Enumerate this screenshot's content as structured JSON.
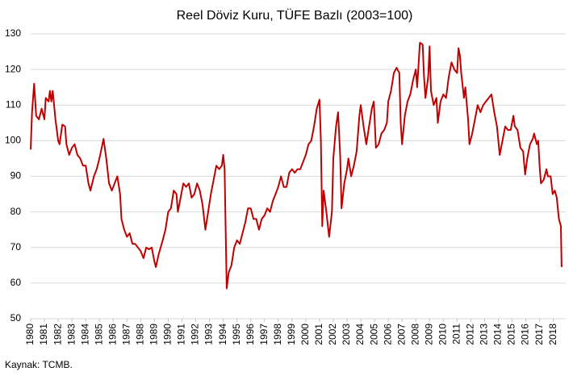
{
  "chart_data": {
    "type": "line",
    "title": "Reel Döviz Kuru, TÜFE Bazlı (2003=100)",
    "source": "Kaynak: TCMB.",
    "x": [
      1980.0,
      1980.1,
      1980.25,
      1980.4,
      1980.6,
      1980.8,
      1981.0,
      1981.1,
      1981.3,
      1981.4,
      1981.5,
      1981.6,
      1981.8,
      1982.0,
      1982.1,
      1982.3,
      1982.5,
      1982.6,
      1982.8,
      1983.0,
      1983.2,
      1983.4,
      1983.6,
      1983.8,
      1984.0,
      1984.2,
      1984.35,
      1984.6,
      1984.8,
      1985.0,
      1985.3,
      1985.5,
      1985.7,
      1985.9,
      1986.1,
      1986.3,
      1986.5,
      1986.6,
      1986.8,
      1987.0,
      1987.2,
      1987.4,
      1987.6,
      1987.8,
      1988.0,
      1988.2,
      1988.4,
      1988.6,
      1988.8,
      1989.0,
      1989.1,
      1989.3,
      1989.6,
      1989.8,
      1990.0,
      1990.2,
      1990.4,
      1990.6,
      1990.7,
      1990.9,
      1991.1,
      1991.3,
      1991.5,
      1991.7,
      1991.9,
      1992.1,
      1992.3,
      1992.5,
      1992.7,
      1992.9,
      1993.1,
      1993.3,
      1993.5,
      1993.7,
      1993.9,
      1994.0,
      1994.1,
      1994.25,
      1994.4,
      1994.6,
      1994.8,
      1995.0,
      1995.2,
      1995.4,
      1995.6,
      1995.8,
      1996.0,
      1996.2,
      1996.4,
      1996.6,
      1996.8,
      1997.0,
      1997.2,
      1997.4,
      1997.6,
      1997.8,
      1998.0,
      1998.2,
      1998.4,
      1998.6,
      1998.8,
      1999.0,
      1999.2,
      1999.4,
      1999.6,
      1999.8,
      2000.0,
      2000.2,
      2000.4,
      2000.6,
      2000.8,
      2001.0,
      2001.1,
      2001.2,
      2001.3,
      2001.5,
      2001.7,
      2001.9,
      2002.0,
      2002.2,
      2002.35,
      2002.5,
      2002.6,
      2002.8,
      2003.0,
      2003.1,
      2003.3,
      2003.5,
      2003.7,
      2003.9,
      2004.0,
      2004.2,
      2004.4,
      2004.6,
      2004.8,
      2004.95,
      2005.1,
      2005.3,
      2005.5,
      2005.7,
      2005.9,
      2006.0,
      2006.2,
      2006.4,
      2006.6,
      2006.8,
      2006.9,
      2007.0,
      2007.2,
      2007.4,
      2007.6,
      2007.8,
      2008.0,
      2008.1,
      2008.3,
      2008.5,
      2008.6,
      2008.7,
      2008.9,
      2009.0,
      2009.1,
      2009.3,
      2009.5,
      2009.6,
      2009.8,
      2010.0,
      2010.2,
      2010.4,
      2010.6,
      2010.8,
      2011.0,
      2011.1,
      2011.2,
      2011.3,
      2011.5,
      2011.6,
      2011.8,
      2011.9,
      2012.1,
      2012.3,
      2012.5,
      2012.7,
      2012.9,
      2013.1,
      2013.3,
      2013.5,
      2013.7,
      2013.9,
      2014.1,
      2014.3,
      2014.5,
      2014.7,
      2014.9,
      2015.1,
      2015.2,
      2015.4,
      2015.6,
      2015.8,
      2015.95,
      2016.1,
      2016.3,
      2016.5,
      2016.6,
      2016.8,
      2016.9,
      2017.0,
      2017.1,
      2017.3,
      2017.5,
      2017.6,
      2017.8,
      2017.95,
      2018.1,
      2018.25,
      2018.4,
      2018.55,
      2018.6
    ],
    "series": [
      {
        "name": "Reel Döviz Kuru",
        "color": "#c00000",
        "values": [
          97.5,
          108,
          116,
          107,
          106,
          109,
          106,
          112,
          111,
          114,
          111,
          114,
          106,
          100,
          99,
          104.5,
          104,
          99,
          96,
          98,
          99,
          96,
          95,
          93,
          93,
          88,
          86,
          90,
          92,
          95,
          100.5,
          95,
          88,
          86,
          88,
          90,
          85,
          78,
          75,
          73,
          74,
          71,
          71,
          70,
          69,
          67,
          70,
          69.5,
          70,
          66,
          64.5,
          68,
          72,
          75,
          80,
          81,
          86,
          85,
          80,
          84,
          88,
          87,
          88,
          84,
          85,
          88,
          86,
          82,
          75,
          80,
          85,
          89,
          93,
          92,
          93,
          96,
          92,
          58.5,
          63,
          65,
          70,
          72,
          71,
          74,
          77,
          81,
          81,
          78,
          78,
          75,
          78,
          79,
          81,
          80,
          83,
          85,
          87,
          90,
          87,
          87,
          91,
          92,
          91,
          92,
          92,
          94,
          96,
          99,
          100,
          104,
          109,
          111.5,
          100,
          76,
          86,
          80,
          73,
          80,
          95,
          104,
          108,
          96,
          81,
          88,
          92,
          95,
          90,
          93,
          97,
          107,
          110,
          104,
          99,
          104,
          109,
          111,
          98,
          99,
          102,
          103,
          105,
          111,
          114,
          119,
          120.5,
          119,
          105,
          99,
          107,
          111,
          113,
          117,
          120,
          115,
          127.5,
          127,
          118,
          112,
          118,
          126.5,
          114,
          110,
          112,
          105,
          111,
          113,
          112,
          118,
          122,
          120,
          119,
          126,
          124,
          119,
          112,
          115,
          106,
          99,
          102,
          106,
          110,
          108,
          110,
          111,
          112,
          113,
          108,
          104,
          96,
          100,
          104,
          103,
          103,
          107,
          104,
          103,
          98,
          97,
          90.5,
          95,
          99,
          100.5,
          102,
          99,
          100,
          93,
          88,
          89,
          92,
          90,
          90,
          85,
          86,
          84,
          78,
          76,
          64.5
        ]
      }
    ],
    "xlim": [
      1980,
      2018.9
    ],
    "xticks": [
      1980,
      1981,
      1982,
      1983,
      1984,
      1985,
      1986,
      1987,
      1988,
      1989,
      1990,
      1991,
      1992,
      1993,
      1994,
      1995,
      1996,
      1997,
      1998,
      1999,
      2000,
      2001,
      2002,
      2003,
      2004,
      2005,
      2006,
      2007,
      2008,
      2009,
      2010,
      2011,
      2012,
      2013,
      2014,
      2015,
      2016,
      2017,
      2018
    ],
    "ylim": [
      50,
      130
    ],
    "yticks": [
      50,
      60,
      70,
      80,
      90,
      100,
      110,
      120,
      130
    ],
    "grid": true
  }
}
